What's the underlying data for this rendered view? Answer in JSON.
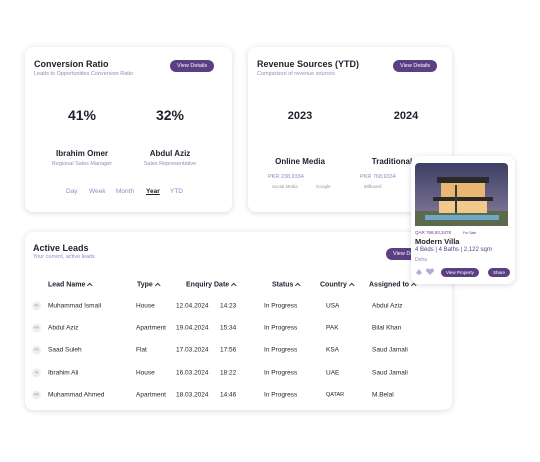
{
  "conversion": {
    "title": "Conversion Ratio",
    "subtitle": "Leads to Opportunities Conversion Ratio",
    "button": "View Details",
    "people": [
      {
        "percent": "41%",
        "name": "Ibrahim Omer",
        "role": "Regional Sales Manager"
      },
      {
        "percent": "32%",
        "name": "Abdul Aziz",
        "role": "Sales Representative"
      }
    ],
    "tabs": [
      "Day",
      "Week",
      "Month",
      "Year",
      "YTD"
    ]
  },
  "revenue": {
    "title": "Revenue Sources (YTD)",
    "subtitle": "Comparison of revenue sources",
    "button": "View Details",
    "sources": [
      {
        "year": "2023",
        "name": "Online Media",
        "amount": "PKR 238,9334",
        "legend": [
          "Social Media",
          "Google"
        ]
      },
      {
        "year": "2024",
        "name": "Traditional",
        "amount": "PKR 768,9334",
        "legend": [
          "Billboard"
        ]
      }
    ]
  },
  "property": {
    "price": "QAR 768,93,3478",
    "tag": "For Sale",
    "name": "Modern Villa",
    "details": "4 Beds | 4 Baths | 2,122 sqm",
    "location": "Doha",
    "buttons": [
      "View Property",
      "Share"
    ]
  },
  "leads": {
    "title": "Active Leads",
    "subtitle": "Your current, active leads",
    "button": "View Details",
    "columns": [
      "Lead Name",
      "Type",
      "Enquiry Date",
      "Status",
      "Country",
      "Assigned to"
    ],
    "rows": [
      [
        "MI",
        "Muhammad Ismail",
        "House",
        "12.04.2024",
        "14:23",
        "In Progress",
        "USA",
        "Abdul Aziz"
      ],
      [
        "AA",
        "Abdul Aziz",
        "Apartment",
        "19.04.2024",
        "15:34",
        "In Progress",
        "PAK",
        "Bilal Khan"
      ],
      [
        "SS",
        "Saad Suleh",
        "Flat",
        "17.03.2024",
        "17:56",
        "In Progress",
        "KSA",
        "Saud Jamali"
      ],
      [
        "IA",
        "Ibrahim Ali",
        "House",
        "16.03.2024",
        "18:22",
        "In Progress",
        "UAE",
        "Saud Jamali"
      ],
      [
        "MA",
        "Muhammad Ahmed",
        "Apartment",
        "18.03.2024",
        "14:46",
        "In Progress",
        "QATAR",
        "M.Belal"
      ]
    ]
  }
}
